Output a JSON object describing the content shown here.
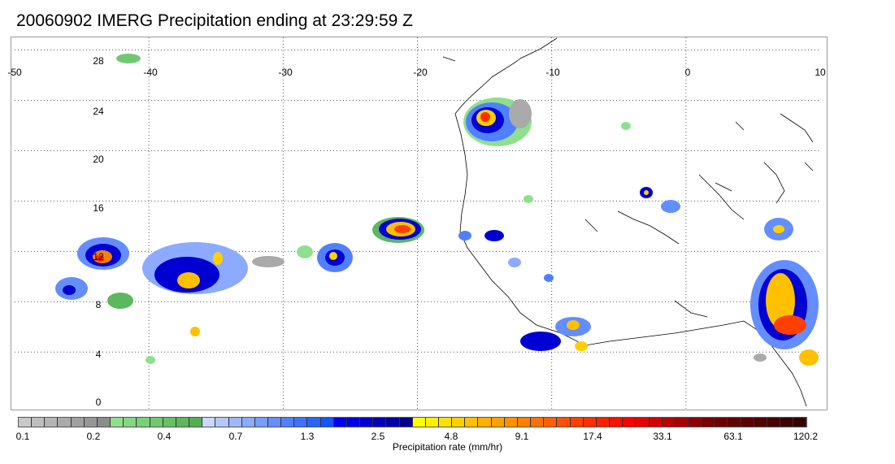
{
  "title": "20060902 IMERG Precipitation ending at 23:29:59 Z",
  "map": {
    "lon_range": [
      -50,
      10
    ],
    "lat_range": [
      -0.5,
      29
    ],
    "lon_ticks": [
      "-50",
      "-40",
      "-30",
      "-20",
      "-10",
      "0",
      "10"
    ],
    "lat_ticks": [
      "28",
      "24",
      "20",
      "16",
      "12",
      "8",
      "4",
      "0"
    ],
    "gridlines": "dotted"
  },
  "colorbar": {
    "label": "Precipitation rate (mm/hr)",
    "tick_labels": [
      "0.1",
      "0.2",
      "0.4",
      "0.7",
      "1.3",
      "2.5",
      "4.8",
      "9.1",
      "17.4",
      "33.1",
      "63.1",
      "120.2"
    ],
    "colors": [
      "#c8c8c8",
      "#bebebe",
      "#b4b4b4",
      "#aaaaaa",
      "#a0a0a0",
      "#969696",
      "#8c8c8c",
      "#8ee08e",
      "#84d884",
      "#7ad07a",
      "#70c870",
      "#66c066",
      "#5cb85c",
      "#52b052",
      "#c8d8ff",
      "#b4c8ff",
      "#a0b8ff",
      "#8caaff",
      "#789cff",
      "#648eff",
      "#5080ff",
      "#3c72ff",
      "#2864ff",
      "#1456ff",
      "#0000ff",
      "#0000e8",
      "#0000d2",
      "#0000bc",
      "#0000a6",
      "#000090",
      "#ffff00",
      "#fff000",
      "#ffe000",
      "#ffd000",
      "#ffc000",
      "#ffb000",
      "#ffa000",
      "#ff9000",
      "#ff8000",
      "#ff7000",
      "#ff6000",
      "#ff5000",
      "#ff4000",
      "#ff3000",
      "#ff2000",
      "#ff1000",
      "#ff0000",
      "#e80000",
      "#d20000",
      "#bc0000",
      "#a60000",
      "#900000",
      "#7a0000",
      "#700000",
      "#660000",
      "#5c0000",
      "#520000",
      "#480000",
      "#3e0000",
      "#340000"
    ]
  }
}
